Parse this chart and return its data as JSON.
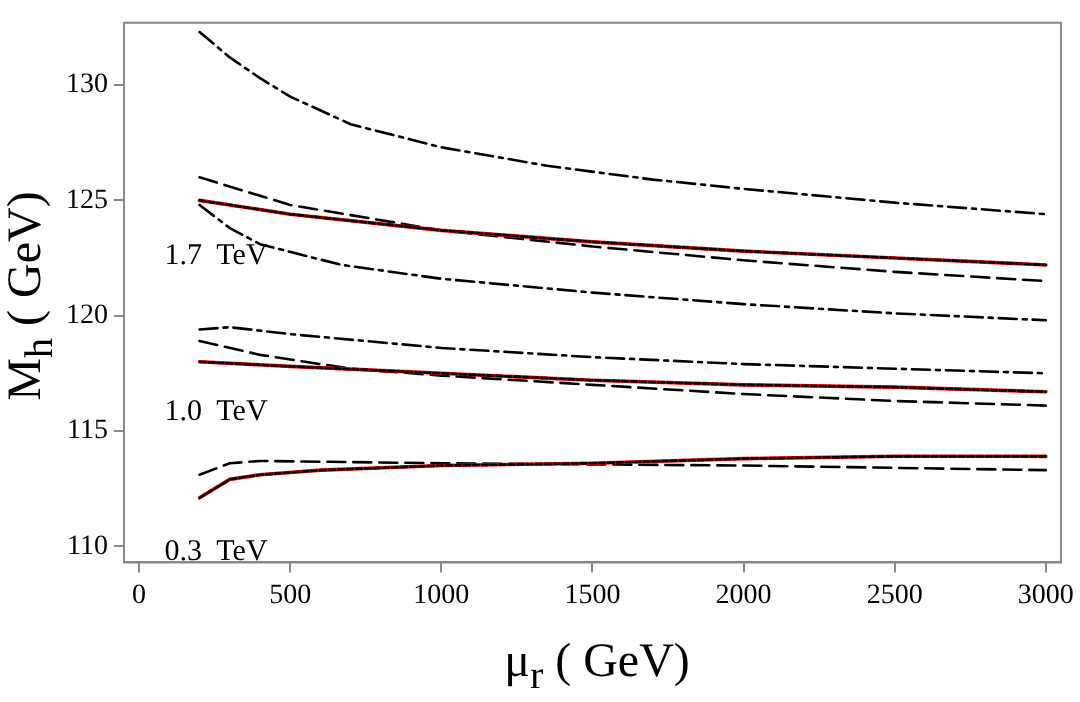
{
  "chart_data": {
    "type": "line",
    "xlabel": "μ$_{r}$ ( GeV)",
    "ylabel": "M$_{h}$ ( GeV)",
    "xlim": [
      -50,
      3050
    ],
    "ylim": [
      109.3,
      132.7
    ],
    "xticks": [
      0,
      500,
      1000,
      1500,
      2000,
      2500,
      3000
    ],
    "yticks": [
      110,
      115,
      120,
      125,
      130
    ],
    "grid": false,
    "legend": false,
    "marker": "none",
    "annotations": [
      "1.7  TeV",
      "1.0  TeV",
      "0.3  TeV"
    ],
    "series": [
      {
        "color": "#000000",
        "line_style": "dashdot",
        "x": [
          200,
          300,
          400,
          500,
          700,
          1000,
          1350,
          1700,
          2000,
          2500,
          3000
        ],
        "values": [
          132.3,
          131.2,
          130.3,
          129.5,
          128.3,
          127.3,
          126.5,
          125.9,
          125.5,
          124.9,
          124.4
        ]
      },
      {
        "color": "#000000",
        "line_style": "dashed",
        "x": [
          200,
          500,
          1000,
          1500,
          2000,
          2500,
          3000
        ],
        "values": [
          126.0,
          124.8,
          123.7,
          123.0,
          122.4,
          121.9,
          121.5
        ]
      },
      {
        "color": "#ff0000",
        "line_style": "solid",
        "x": [
          200,
          500,
          1000,
          1500,
          2000,
          2500,
          3000
        ],
        "values": [
          125.0,
          124.4,
          123.7,
          123.2,
          122.8,
          122.5,
          122.2
        ]
      },
      {
        "color": "#000000",
        "line_style": "dotted",
        "x": [
          200,
          500,
          1000,
          1500,
          2000,
          2500,
          3000
        ],
        "values": [
          125.0,
          124.4,
          123.7,
          123.2,
          122.8,
          122.5,
          122.2
        ]
      },
      {
        "color": "#000000",
        "line_style": "dashdot",
        "x": [
          200,
          300,
          400,
          670,
          1000,
          1500,
          2000,
          2500,
          3000
        ],
        "values": [
          124.8,
          123.8,
          123.1,
          122.2,
          121.6,
          121.0,
          120.5,
          120.1,
          119.8
        ]
      },
      {
        "color": "#000000",
        "line_style": "dashdot",
        "x": [
          200,
          300,
          500,
          1000,
          1500,
          2000,
          2500,
          3000
        ],
        "values": [
          119.4,
          119.5,
          119.2,
          118.6,
          118.2,
          117.9,
          117.7,
          117.5
        ]
      },
      {
        "color": "#000000",
        "line_style": "dashed",
        "x": [
          200,
          400,
          700,
          1000,
          1500,
          2000,
          2500,
          3000
        ],
        "values": [
          118.9,
          118.3,
          117.7,
          117.4,
          117.0,
          116.6,
          116.3,
          116.1
        ]
      },
      {
        "color": "#ff0000",
        "line_style": "solid",
        "x": [
          200,
          500,
          1000,
          1500,
          2000,
          2500,
          3000
        ],
        "values": [
          118.0,
          117.8,
          117.5,
          117.2,
          117.0,
          116.9,
          116.7
        ]
      },
      {
        "color": "#000000",
        "line_style": "dotted",
        "x": [
          200,
          500,
          1000,
          1500,
          2000,
          2500,
          3000
        ],
        "values": [
          118.0,
          117.8,
          117.5,
          117.2,
          117.0,
          116.9,
          116.7
        ]
      },
      {
        "color": "#000000",
        "line_style": "dashed",
        "x": [
          200,
          300,
          400,
          1000,
          2000,
          3000
        ],
        "values": [
          113.1,
          113.6,
          113.7,
          113.6,
          113.5,
          113.3
        ]
      },
      {
        "color": "#ff0000",
        "line_style": "solid",
        "x": [
          200,
          300,
          400,
          600,
          1000,
          1500,
          2000,
          2500,
          3000
        ],
        "values": [
          112.1,
          112.9,
          113.1,
          113.3,
          113.5,
          113.6,
          113.8,
          113.9,
          113.9
        ]
      },
      {
        "color": "#000000",
        "line_style": "dotted",
        "x": [
          200,
          300,
          400,
          600,
          1000,
          1500,
          2000,
          2500,
          3000
        ],
        "values": [
          112.1,
          112.9,
          113.1,
          113.3,
          113.5,
          113.6,
          113.8,
          113.9,
          113.9
        ]
      }
    ]
  }
}
